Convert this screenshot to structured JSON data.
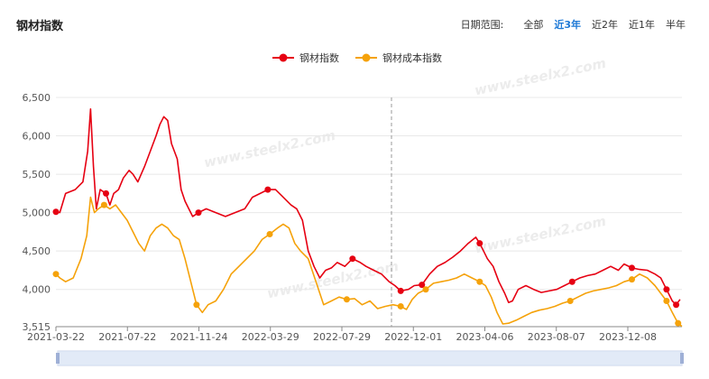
{
  "header": {
    "title": "钢材指数",
    "range_label": "日期范围:",
    "range_options": [
      "全部",
      "近3年",
      "近2年",
      "近1年",
      "半年"
    ],
    "range_active_index": 1
  },
  "watermark": "www.steelx2.com",
  "colors": {
    "series1": "#e60012",
    "series2": "#f5a20a",
    "grid": "#e8e8e8",
    "accent": "#1e79d6"
  },
  "chart_data": {
    "type": "line",
    "legend_position": "top",
    "series": [
      {
        "name": "钢材指数",
        "color": "#e60012",
        "values": [
          [
            0,
            5010
          ],
          [
            4,
            5000
          ],
          [
            10,
            5250
          ],
          [
            20,
            5300
          ],
          [
            28,
            5400
          ],
          [
            33,
            5800
          ],
          [
            36,
            6350
          ],
          [
            39,
            5600
          ],
          [
            42,
            5050
          ],
          [
            46,
            5300
          ],
          [
            52,
            5250
          ],
          [
            56,
            5100
          ],
          [
            60,
            5250
          ],
          [
            65,
            5300
          ],
          [
            70,
            5450
          ],
          [
            76,
            5550
          ],
          [
            80,
            5500
          ],
          [
            85,
            5400
          ],
          [
            92,
            5600
          ],
          [
            98,
            5800
          ],
          [
            104,
            6000
          ],
          [
            108,
            6150
          ],
          [
            112,
            6250
          ],
          [
            116,
            6200
          ],
          [
            120,
            5900
          ],
          [
            126,
            5700
          ],
          [
            130,
            5300
          ],
          [
            134,
            5150
          ],
          [
            138,
            5050
          ],
          [
            142,
            4950
          ],
          [
            148,
            5000
          ],
          [
            156,
            5050
          ],
          [
            166,
            5000
          ],
          [
            176,
            4950
          ],
          [
            186,
            5000
          ],
          [
            196,
            5050
          ],
          [
            204,
            5200
          ],
          [
            212,
            5250
          ],
          [
            220,
            5300
          ],
          [
            228,
            5300
          ],
          [
            236,
            5200
          ],
          [
            244,
            5100
          ],
          [
            250,
            5050
          ],
          [
            256,
            4900
          ],
          [
            262,
            4500
          ],
          [
            268,
            4300
          ],
          [
            274,
            4150
          ],
          [
            280,
            4250
          ],
          [
            286,
            4280
          ],
          [
            292,
            4350
          ],
          [
            300,
            4300
          ],
          [
            308,
            4400
          ],
          [
            316,
            4350
          ],
          [
            322,
            4300
          ],
          [
            330,
            4250
          ],
          [
            338,
            4200
          ],
          [
            346,
            4100
          ],
          [
            352,
            4050
          ],
          [
            358,
            3980
          ],
          [
            366,
            4000
          ],
          [
            372,
            4050
          ],
          [
            380,
            4060
          ],
          [
            388,
            4200
          ],
          [
            396,
            4300
          ],
          [
            404,
            4350
          ],
          [
            412,
            4420
          ],
          [
            420,
            4500
          ],
          [
            428,
            4600
          ],
          [
            436,
            4680
          ],
          [
            440,
            4600
          ],
          [
            444,
            4500
          ],
          [
            448,
            4400
          ],
          [
            454,
            4300
          ],
          [
            460,
            4100
          ],
          [
            466,
            3950
          ],
          [
            470,
            3830
          ],
          [
            474,
            3850
          ],
          [
            480,
            4000
          ],
          [
            488,
            4050
          ],
          [
            496,
            4000
          ],
          [
            504,
            3960
          ],
          [
            512,
            3980
          ],
          [
            520,
            4000
          ],
          [
            528,
            4050
          ],
          [
            536,
            4100
          ],
          [
            544,
            4150
          ],
          [
            552,
            4180
          ],
          [
            560,
            4200
          ],
          [
            568,
            4250
          ],
          [
            576,
            4300
          ],
          [
            584,
            4250
          ],
          [
            590,
            4330
          ],
          [
            598,
            4280
          ],
          [
            606,
            4260
          ],
          [
            614,
            4250
          ],
          [
            622,
            4200
          ],
          [
            628,
            4150
          ],
          [
            634,
            4000
          ],
          [
            640,
            3850
          ],
          [
            644,
            3800
          ],
          [
            648,
            3870
          ]
        ]
      },
      {
        "name": "钢材成本指数",
        "color": "#f5a20a",
        "values": [
          [
            0,
            4200
          ],
          [
            4,
            4150
          ],
          [
            10,
            4100
          ],
          [
            18,
            4150
          ],
          [
            26,
            4400
          ],
          [
            32,
            4700
          ],
          [
            36,
            5200
          ],
          [
            40,
            5000
          ],
          [
            44,
            5050
          ],
          [
            50,
            5100
          ],
          [
            56,
            5050
          ],
          [
            62,
            5100
          ],
          [
            68,
            5000
          ],
          [
            74,
            4900
          ],
          [
            80,
            4750
          ],
          [
            86,
            4600
          ],
          [
            92,
            4500
          ],
          [
            98,
            4700
          ],
          [
            104,
            4800
          ],
          [
            110,
            4850
          ],
          [
            116,
            4800
          ],
          [
            122,
            4700
          ],
          [
            128,
            4650
          ],
          [
            134,
            4400
          ],
          [
            140,
            4100
          ],
          [
            146,
            3800
          ],
          [
            152,
            3700
          ],
          [
            158,
            3800
          ],
          [
            166,
            3850
          ],
          [
            174,
            4000
          ],
          [
            182,
            4200
          ],
          [
            190,
            4300
          ],
          [
            198,
            4400
          ],
          [
            206,
            4500
          ],
          [
            214,
            4650
          ],
          [
            222,
            4720
          ],
          [
            230,
            4800
          ],
          [
            236,
            4850
          ],
          [
            242,
            4800
          ],
          [
            248,
            4600
          ],
          [
            254,
            4500
          ],
          [
            262,
            4400
          ],
          [
            270,
            4100
          ],
          [
            278,
            3800
          ],
          [
            286,
            3850
          ],
          [
            294,
            3900
          ],
          [
            302,
            3870
          ],
          [
            310,
            3880
          ],
          [
            318,
            3800
          ],
          [
            326,
            3850
          ],
          [
            334,
            3750
          ],
          [
            342,
            3780
          ],
          [
            350,
            3800
          ],
          [
            358,
            3780
          ],
          [
            364,
            3740
          ],
          [
            370,
            3870
          ],
          [
            376,
            3950
          ],
          [
            384,
            4000
          ],
          [
            392,
            4080
          ],
          [
            400,
            4100
          ],
          [
            408,
            4120
          ],
          [
            416,
            4150
          ],
          [
            424,
            4200
          ],
          [
            432,
            4150
          ],
          [
            440,
            4100
          ],
          [
            446,
            4050
          ],
          [
            452,
            3900
          ],
          [
            458,
            3700
          ],
          [
            464,
            3550
          ],
          [
            470,
            3560
          ],
          [
            478,
            3600
          ],
          [
            486,
            3650
          ],
          [
            494,
            3700
          ],
          [
            502,
            3730
          ],
          [
            510,
            3750
          ],
          [
            518,
            3780
          ],
          [
            526,
            3820
          ],
          [
            534,
            3850
          ],
          [
            542,
            3900
          ],
          [
            550,
            3950
          ],
          [
            558,
            3980
          ],
          [
            566,
            4000
          ],
          [
            574,
            4020
          ],
          [
            582,
            4050
          ],
          [
            590,
            4100
          ],
          [
            598,
            4130
          ],
          [
            606,
            4200
          ],
          [
            614,
            4150
          ],
          [
            622,
            4050
          ],
          [
            628,
            3950
          ],
          [
            634,
            3850
          ],
          [
            640,
            3700
          ],
          [
            646,
            3560
          ],
          [
            650,
            3520
          ]
        ]
      }
    ],
    "markers": {
      "钢材指数": [
        0,
        50,
        146,
        222,
        306,
        359,
        382,
        442,
        534,
        600,
        634,
        644
      ],
      "钢材成本指数": [
        0,
        50,
        146,
        222,
        306,
        359,
        382,
        442,
        534,
        600,
        634,
        644
      ]
    },
    "x_tick_labels": [
      "2021-03-22",
      "2021-07-22",
      "2021-11-24",
      "2022-03-29",
      "2022-07-29",
      "2022-12-01",
      "2023-04-06",
      "2023-08-07",
      "2023-12-08"
    ],
    "y_tick_labels": [
      "3,515",
      "4,000",
      "4,500",
      "5,000",
      "5,500",
      "6,000",
      "6,500"
    ],
    "y_tick_values": [
      3515,
      4000,
      4500,
      5000,
      5500,
      6000,
      6500
    ],
    "ylim": [
      3515,
      6500
    ]
  }
}
